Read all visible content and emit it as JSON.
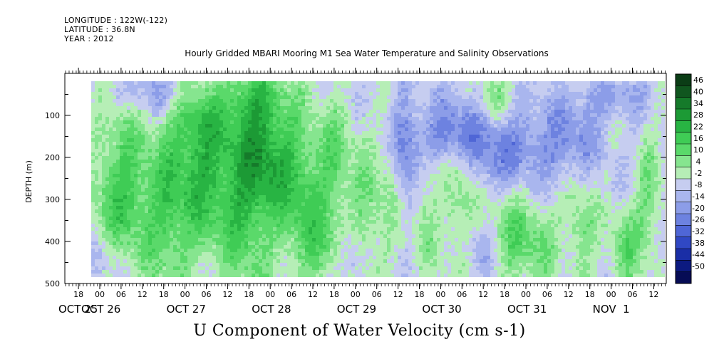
{
  "meta": {
    "longitude": "LONGITUDE : 122W(-122)",
    "latitude": "LATITUDE : 36.8N",
    "year": "YEAR : 2012"
  },
  "chart_data": {
    "type": "heatmap",
    "title": "Hourly Gridded MBARI Mooring M1 Sea Water Temperature and Salinity Observations",
    "variable_label": "U Component of Water Velocity (cm s-1)",
    "ylabel": "DEPTH (m)",
    "y_range": [
      0,
      500
    ],
    "y_ticks": [
      "100",
      "200",
      "300",
      "400",
      "500"
    ],
    "x_hour_ticks": [
      "18",
      "00",
      "06",
      "12",
      "18",
      "00",
      "06",
      "12",
      "18",
      "00",
      "06",
      "12",
      "18",
      "00",
      "06",
      "12",
      "18",
      "00",
      "06",
      "12",
      "18",
      "00",
      "06",
      "12",
      "18",
      "00",
      "06",
      "12"
    ],
    "x_day_labels": [
      "OCT 25",
      "OCT 26",
      "OCT 27",
      "OCT 28",
      "OCT 29",
      "OCT 30",
      "OCT 31",
      "NOV  1"
    ],
    "colorbar_levels": [
      "46",
      "40",
      "34",
      "28",
      "22",
      "16",
      "10",
      "4",
      "-2",
      "-8",
      "-14",
      "-20",
      "-26",
      "-32",
      "-38",
      "-44",
      "-50"
    ],
    "colorbar_colors": [
      "#0b3d16",
      "#10561f",
      "#157a2a",
      "#1c9a35",
      "#28b443",
      "#3fcc55",
      "#5ad96a",
      "#86e58f",
      "#b6eeb6",
      "#c6cdf0",
      "#a9b6ee",
      "#8c9de8",
      "#6d82e0",
      "#4f66d6",
      "#3048c4",
      "#1a2ea6",
      "#0c1a80",
      "#060c55"
    ],
    "data_range": {
      "min": -50,
      "max": 46,
      "depth_top_m": 20,
      "depth_bottom_m": 485
    }
  }
}
